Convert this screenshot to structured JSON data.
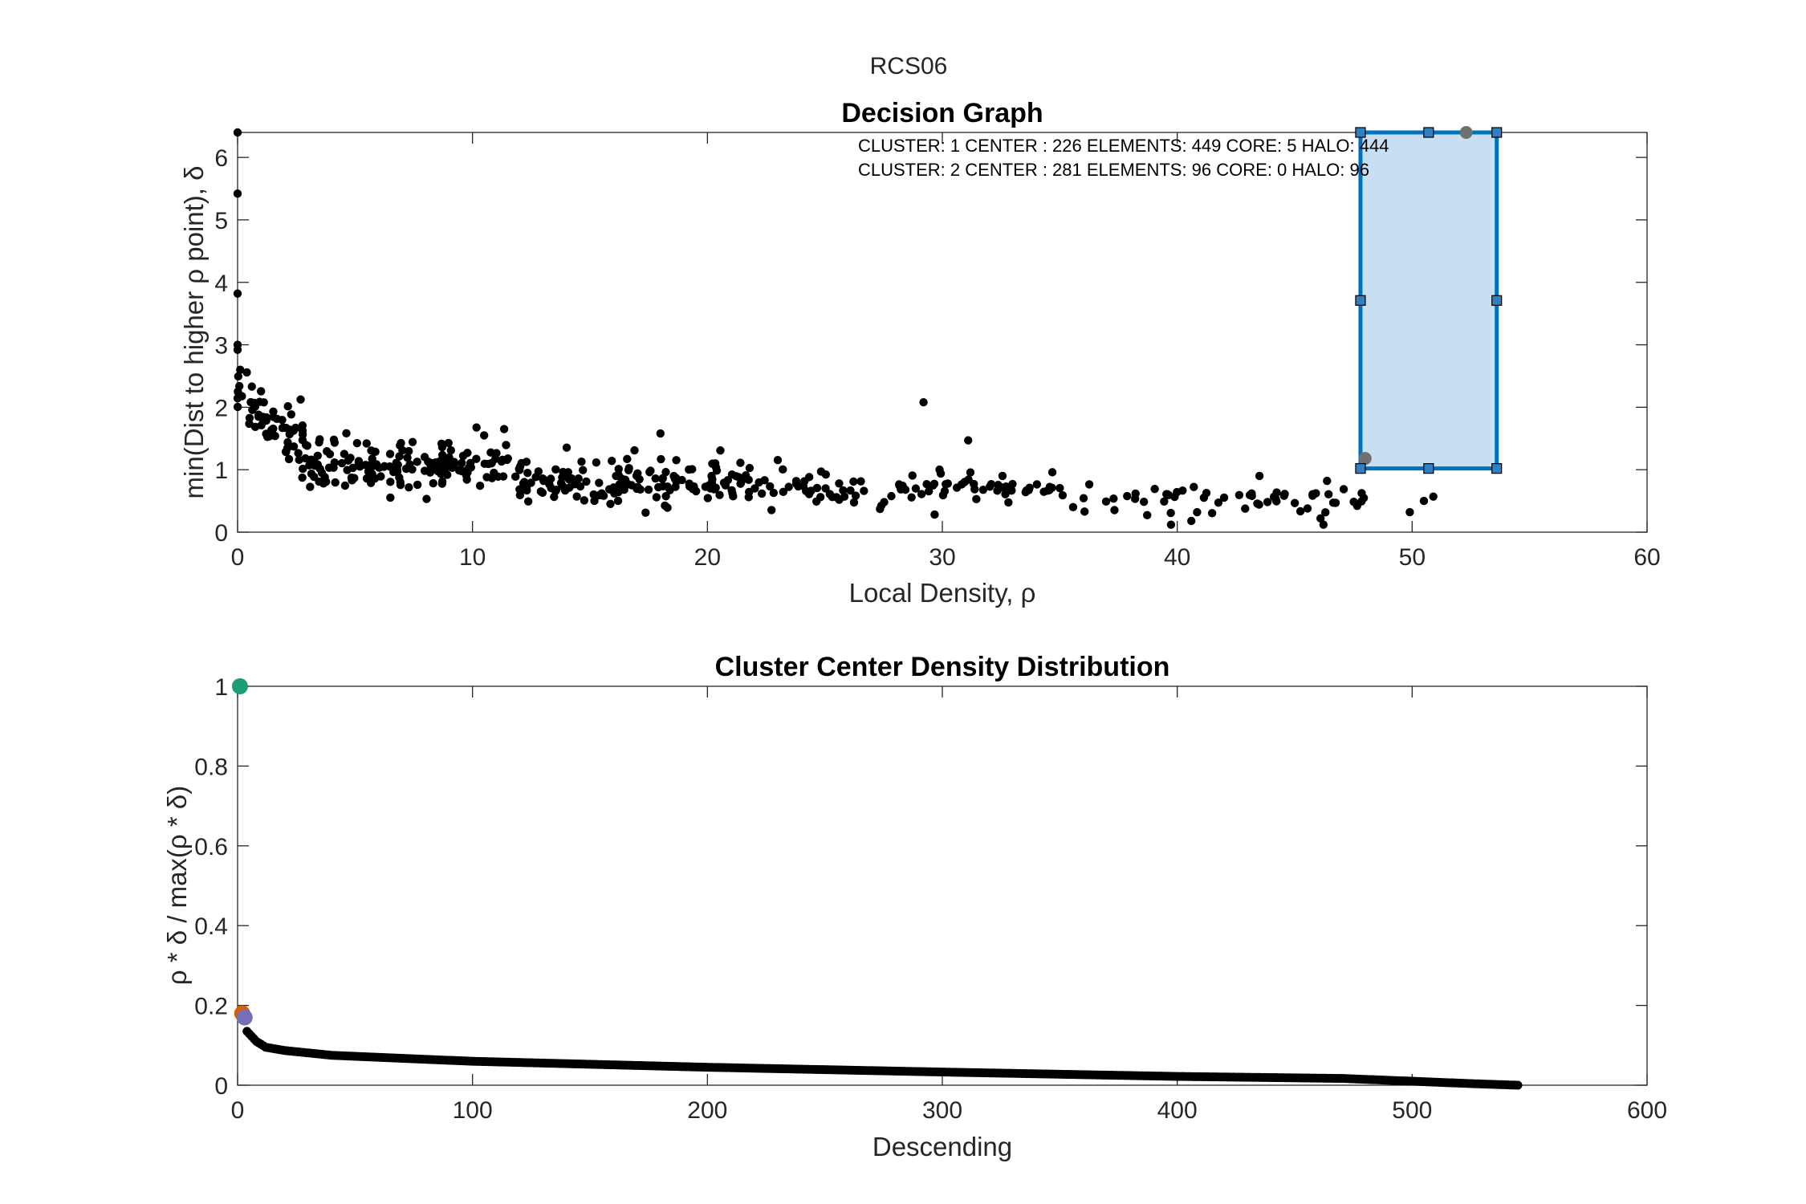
{
  "figure": {
    "suptitle": "RCS06"
  },
  "colors": {
    "points": "#000000",
    "axis": "#262626",
    "selection_fill": "#c7dff0",
    "selection_edge": "#0072bd",
    "handle": "#2f7fc1",
    "center_gray": "#707070",
    "center_1": "#1b9e77",
    "center_2": "#d95f02",
    "center_3": "#7570b3"
  },
  "chart_data": [
    {
      "type": "scatter",
      "title": "Decision Graph",
      "xlabel": "Local Density, ρ",
      "ylabel": "min(Dist to higher ρ point), δ",
      "xlim": [
        0,
        60
      ],
      "ylim": [
        0,
        6.4
      ],
      "xticks": [
        0,
        10,
        20,
        30,
        40,
        50,
        60
      ],
      "yticks": [
        0,
        1,
        2,
        3,
        4,
        5,
        6
      ],
      "grid": false,
      "annotations": [
        "CLUSTER: 1 CENTER : 226 ELEMENTS: 449 CORE: 5 HALO: 444",
        "CLUSTER: 2 CENTER : 281 ELEMENTS: 96 CORE: 0 HALO: 96"
      ],
      "selection_rectangle": {
        "x": [
          47.8,
          53.6
        ],
        "y": [
          1.02,
          6.4
        ]
      },
      "highlighted_centers": [
        {
          "x": 52.3,
          "y": 6.4
        },
        {
          "x": 48.0,
          "y": 1.18
        }
      ],
      "notable_points": [
        {
          "x": 0,
          "y": 6.4
        },
        {
          "x": 0,
          "y": 5.42
        },
        {
          "x": 0,
          "y": 3.82
        },
        {
          "x": 0,
          "y": 3.0
        },
        {
          "x": 0,
          "y": 2.92
        },
        {
          "x": 29.2,
          "y": 2.08
        },
        {
          "x": 31.1,
          "y": 1.47
        },
        {
          "x": 18.0,
          "y": 1.58
        },
        {
          "x": 43.5,
          "y": 0.9
        },
        {
          "x": 49.9,
          "y": 0.32
        },
        {
          "x": 50.5,
          "y": 0.5
        },
        {
          "x": 50.9,
          "y": 0.57
        },
        {
          "x": 46.1,
          "y": 0.22
        },
        {
          "x": 40.6,
          "y": 0.18
        }
      ],
      "n_points": 545,
      "trend_segments": [
        {
          "x": [
            0,
            3
          ],
          "y_mean": 1.8,
          "y_spread": 0.5
        },
        {
          "x": [
            3,
            12
          ],
          "y_mean": 1.05,
          "y_spread": 0.35
        },
        {
          "x": [
            12,
            22
          ],
          "y_mean": 0.8,
          "y_spread": 0.3
        },
        {
          "x": [
            22,
            35
          ],
          "y_mean": 0.7,
          "y_spread": 0.25
        },
        {
          "x": [
            35,
            48
          ],
          "y_mean": 0.55,
          "y_spread": 0.22
        }
      ]
    },
    {
      "type": "scatter",
      "title": "Cluster Center Density Distribution",
      "xlabel": "Descending",
      "ylabel": "ρ * δ / max(ρ * δ)",
      "xlim": [
        0,
        600
      ],
      "ylim": [
        0,
        1
      ],
      "xticks": [
        0,
        100,
        200,
        300,
        400,
        500,
        600
      ],
      "yticks": [
        0,
        0.2,
        0.4,
        0.6,
        0.8,
        1
      ],
      "ytick_labels": [
        "0",
        "0.2",
        "0.4",
        "0.6",
        "0.8",
        "1"
      ],
      "grid": false,
      "highlighted": [
        {
          "x": 1,
          "y": 1.0,
          "color": "center_1"
        },
        {
          "x": 2,
          "y": 0.18,
          "color": "center_2"
        },
        {
          "x": 3,
          "y": 0.17,
          "color": "center_3"
        }
      ],
      "curve_knots": [
        {
          "x": 4,
          "y": 0.135
        },
        {
          "x": 8,
          "y": 0.11
        },
        {
          "x": 12,
          "y": 0.095
        },
        {
          "x": 20,
          "y": 0.087
        },
        {
          "x": 40,
          "y": 0.075
        },
        {
          "x": 100,
          "y": 0.06
        },
        {
          "x": 200,
          "y": 0.045
        },
        {
          "x": 300,
          "y": 0.033
        },
        {
          "x": 400,
          "y": 0.022
        },
        {
          "x": 470,
          "y": 0.017
        },
        {
          "x": 500,
          "y": 0.01
        },
        {
          "x": 525,
          "y": 0.004
        },
        {
          "x": 545,
          "y": 0.0
        }
      ],
      "n_points": 545
    }
  ]
}
